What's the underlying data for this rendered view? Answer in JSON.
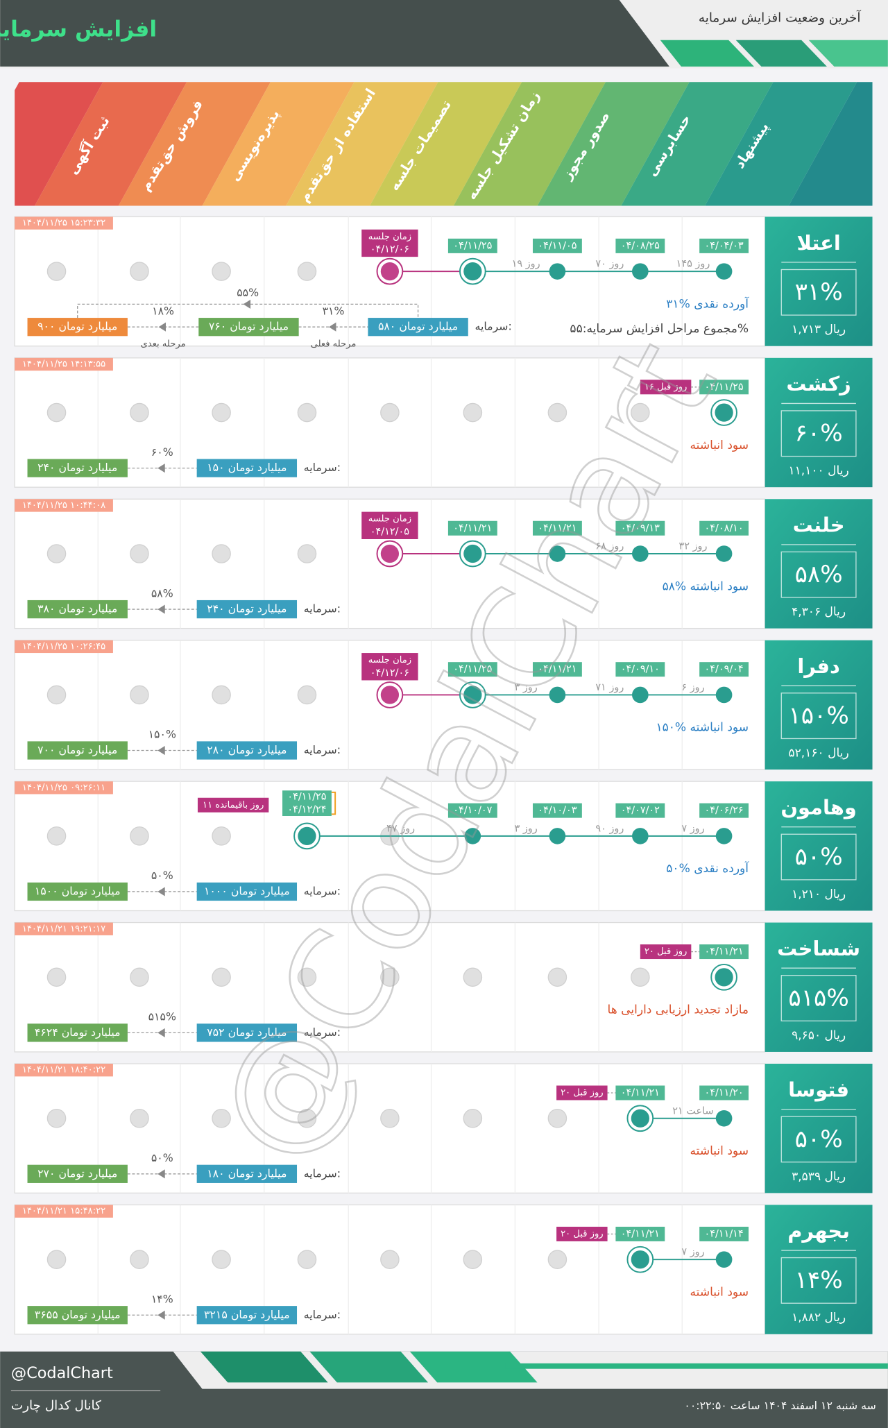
{
  "header": {
    "title": "افزایش سرمایه",
    "subtitle": "آخرین وضعیت افزایش سرمایه"
  },
  "stages": [
    "ثبت آگهی",
    "فروش حق‌تقدم",
    "پذیره‌نویسی",
    "استفاده از حق‌تقدم",
    "تصمیمات جلسه",
    "زمان تشکیل جلسه",
    "صدور مجوز",
    "حسابرسی",
    "پیشنهاد"
  ],
  "rows": [
    {
      "name": "اعتلا",
      "percent": "۳۱%",
      "price": "۱,۷۱۳ ریال",
      "timestamp": "۱۴۰۴/۱۱/۲۵ ۱۵:۲۳:۳۲",
      "events": [
        {
          "date": "۰۴/۰۴/۰۳"
        },
        {
          "date": "۰۴/۰۸/۲۵"
        },
        {
          "date": "۰۴/۱۱/۰۵"
        },
        {
          "date": "۰۴/۱۱/۲۵"
        },
        {
          "label": "زمان جلسه",
          "date": "۰۴/۱۲/۰۶"
        }
      ],
      "gaps": [
        "۱۴۵ روز",
        "۷۰ روز",
        "۱۹ روز"
      ],
      "notes": [
        "۳۱% آورده نقدی",
        "مجموع مراحل افزایش سرمایه:۵۵%"
      ],
      "capital_label": "سرمایه:",
      "capital": "۵۸۰ میلیارد تومان",
      "steps": [
        {
          "percent": "۳۱%",
          "capital": "۷۶۰ میلیارد تومان",
          "caption": "مرحله فعلی"
        },
        {
          "percent": "۱۸%",
          "capital": "۹۰۰ میلیارد تومان",
          "caption": "مرحله بعدی"
        }
      ],
      "total": "۵۵%"
    },
    {
      "name": "زکشت",
      "percent": "۶۰%",
      "price": "۱۱,۱۰۰ ریال",
      "timestamp": "۱۴۰۴/۱۱/۲۵ ۱۴:۱۳:۵۵",
      "events": [
        {
          "date": "۰۴/۱۱/۲۵",
          "badge": "۱۶ روز قبل"
        }
      ],
      "gaps": [],
      "notes": [
        "سود انباشته"
      ],
      "capital_label": "سرمایه:",
      "capital": "۱۵۰ میلیارد تومان",
      "steps": [
        {
          "percent": "۶۰%",
          "capital": "۲۴۰ میلیارد تومان"
        }
      ]
    },
    {
      "name": "خلنت",
      "percent": "۵۸%",
      "price": "۴,۳۰۶ ریال",
      "timestamp": "۱۴۰۴/۱۱/۲۵ ۱۰:۴۴:۰۸",
      "events": [
        {
          "date": "۰۴/۰۸/۱۰"
        },
        {
          "date": "۰۴/۰۹/۱۳"
        },
        {
          "date": "۰۴/۱۱/۲۱"
        },
        {
          "date": "۰۴/۱۱/۲۱"
        },
        {
          "label": "زمان جلسه",
          "date": "۰۴/۱۲/۰۵"
        }
      ],
      "gaps": [
        "۳۲ روز",
        "۶۸ روز"
      ],
      "notes": [
        "۵۸% سود انباشته"
      ],
      "capital_label": "سرمایه:",
      "capital": "۲۴۰ میلیارد تومان",
      "steps": [
        {
          "percent": "۵۸%",
          "capital": "۳۸۰ میلیارد تومان"
        }
      ]
    },
    {
      "name": "دفرا",
      "percent": "۱۵۰%",
      "price": "۵۲,۱۶۰ ریال",
      "timestamp": "۱۴۰۴/۱۱/۲۵ ۱۰:۲۶:۴۵",
      "events": [
        {
          "date": "۰۴/۰۹/۰۴"
        },
        {
          "date": "۰۴/۰۹/۱۰"
        },
        {
          "date": "۰۴/۱۱/۲۱"
        },
        {
          "date": "۰۴/۱۱/۲۵"
        },
        {
          "label": "زمان جلسه",
          "date": "۰۴/۱۲/۰۶"
        }
      ],
      "gaps": [
        "۶ روز",
        "۷۱ روز",
        "۳ روز"
      ],
      "notes": [
        "۱۵۰% سود انباشته"
      ],
      "capital_label": "سرمایه:",
      "capital": "۲۸۰ میلیارد تومان",
      "steps": [
        {
          "percent": "۱۵۰%",
          "capital": "۷۰۰ میلیارد تومان"
        }
      ]
    },
    {
      "name": "وهامون",
      "percent": "۵۰%",
      "price": "۱,۲۱۰ ریال",
      "timestamp": "۱۴۰۴/۱۱/۲۵ ۰۹:۲۶:۱۱",
      "events": [
        {
          "date": "۰۴/۰۶/۲۶"
        },
        {
          "date": "۰۴/۰۷/۰۲"
        },
        {
          "date": "۰۴/۱۰/۰۳"
        },
        {
          "date": "۰۴/۱۰/۰۷"
        },
        {
          "date": "۰۴/۱۱/۲۵",
          "date2": "۰۴/۱۲/۲۴",
          "badge": "۱۱ روز باقیمانده"
        }
      ],
      "gaps": [
        "۷ روز",
        "۹۰ روز",
        "۳ روز",
        "۴۷ روز"
      ],
      "notes": [
        "۵۰% آورده نقدی"
      ],
      "capital_label": "سرمایه:",
      "capital": "۱۰۰۰ میلیارد تومان",
      "steps": [
        {
          "percent": "۵۰%",
          "capital": "۱۵۰۰ میلیارد تومان"
        }
      ]
    },
    {
      "name": "شساخت",
      "percent": "۵۱۵%",
      "price": "۹,۶۵۰ ریال",
      "timestamp": "۱۴۰۴/۱۱/۲۱ ۱۹:۲۱:۱۷",
      "events": [
        {
          "date": "۰۴/۱۱/۲۱",
          "badge": "۲۰ روز قبل"
        }
      ],
      "gaps": [],
      "notes": [
        "مازاد تجدید ارزیابی دارایی ها"
      ],
      "capital_label": "سرمایه:",
      "capital": "۷۵۲ میلیارد تومان",
      "steps": [
        {
          "percent": "۵۱۵%",
          "capital": "۴۶۲۴ میلیارد تومان"
        }
      ]
    },
    {
      "name": "فتوسا",
      "percent": "۵۰%",
      "price": "۳,۵۳۹ ریال",
      "timestamp": "۱۴۰۴/۱۱/۲۱ ۱۸:۴۰:۲۲",
      "events": [
        {
          "date": "۰۴/۱۱/۲۰"
        },
        {
          "date": "۰۴/۱۱/۲۱",
          "badge": "۲۰ روز قبل"
        }
      ],
      "gaps": [
        "۲۱ ساعت"
      ],
      "notes": [
        "سود انباشته"
      ],
      "capital_label": "سرمایه:",
      "capital": "۱۸۰ میلیارد تومان",
      "steps": [
        {
          "percent": "۵۰%",
          "capital": "۲۷۰ میلیارد تومان"
        }
      ]
    },
    {
      "name": "بجهرم",
      "percent": "۱۴%",
      "price": "۱,۸۸۲ ریال",
      "timestamp": "۱۴۰۴/۱۱/۲۱ ۱۵:۴۸:۲۲",
      "events": [
        {
          "date": "۰۴/۱۱/۱۴"
        },
        {
          "date": "۰۴/۱۱/۲۱",
          "badge": "۲۰ روز قبل"
        }
      ],
      "gaps": [
        "۷ روز"
      ],
      "notes": [
        "سود انباشته"
      ],
      "capital_label": "سرمایه:",
      "capital": "۳۲۱۵ میلیارد تومان",
      "steps": [
        {
          "percent": "۱۴%",
          "capital": "۳۶۵۵ میلیارد تومان"
        }
      ]
    }
  ],
  "watermark": "@CodalChart",
  "footer": {
    "handle": "@CodalChart",
    "channel": "کانال کدال چارت",
    "date": "سه شنبه ۱۲ اسفند ۱۴۰۴ ساعت ۰۰:۲۲:۵۰"
  }
}
